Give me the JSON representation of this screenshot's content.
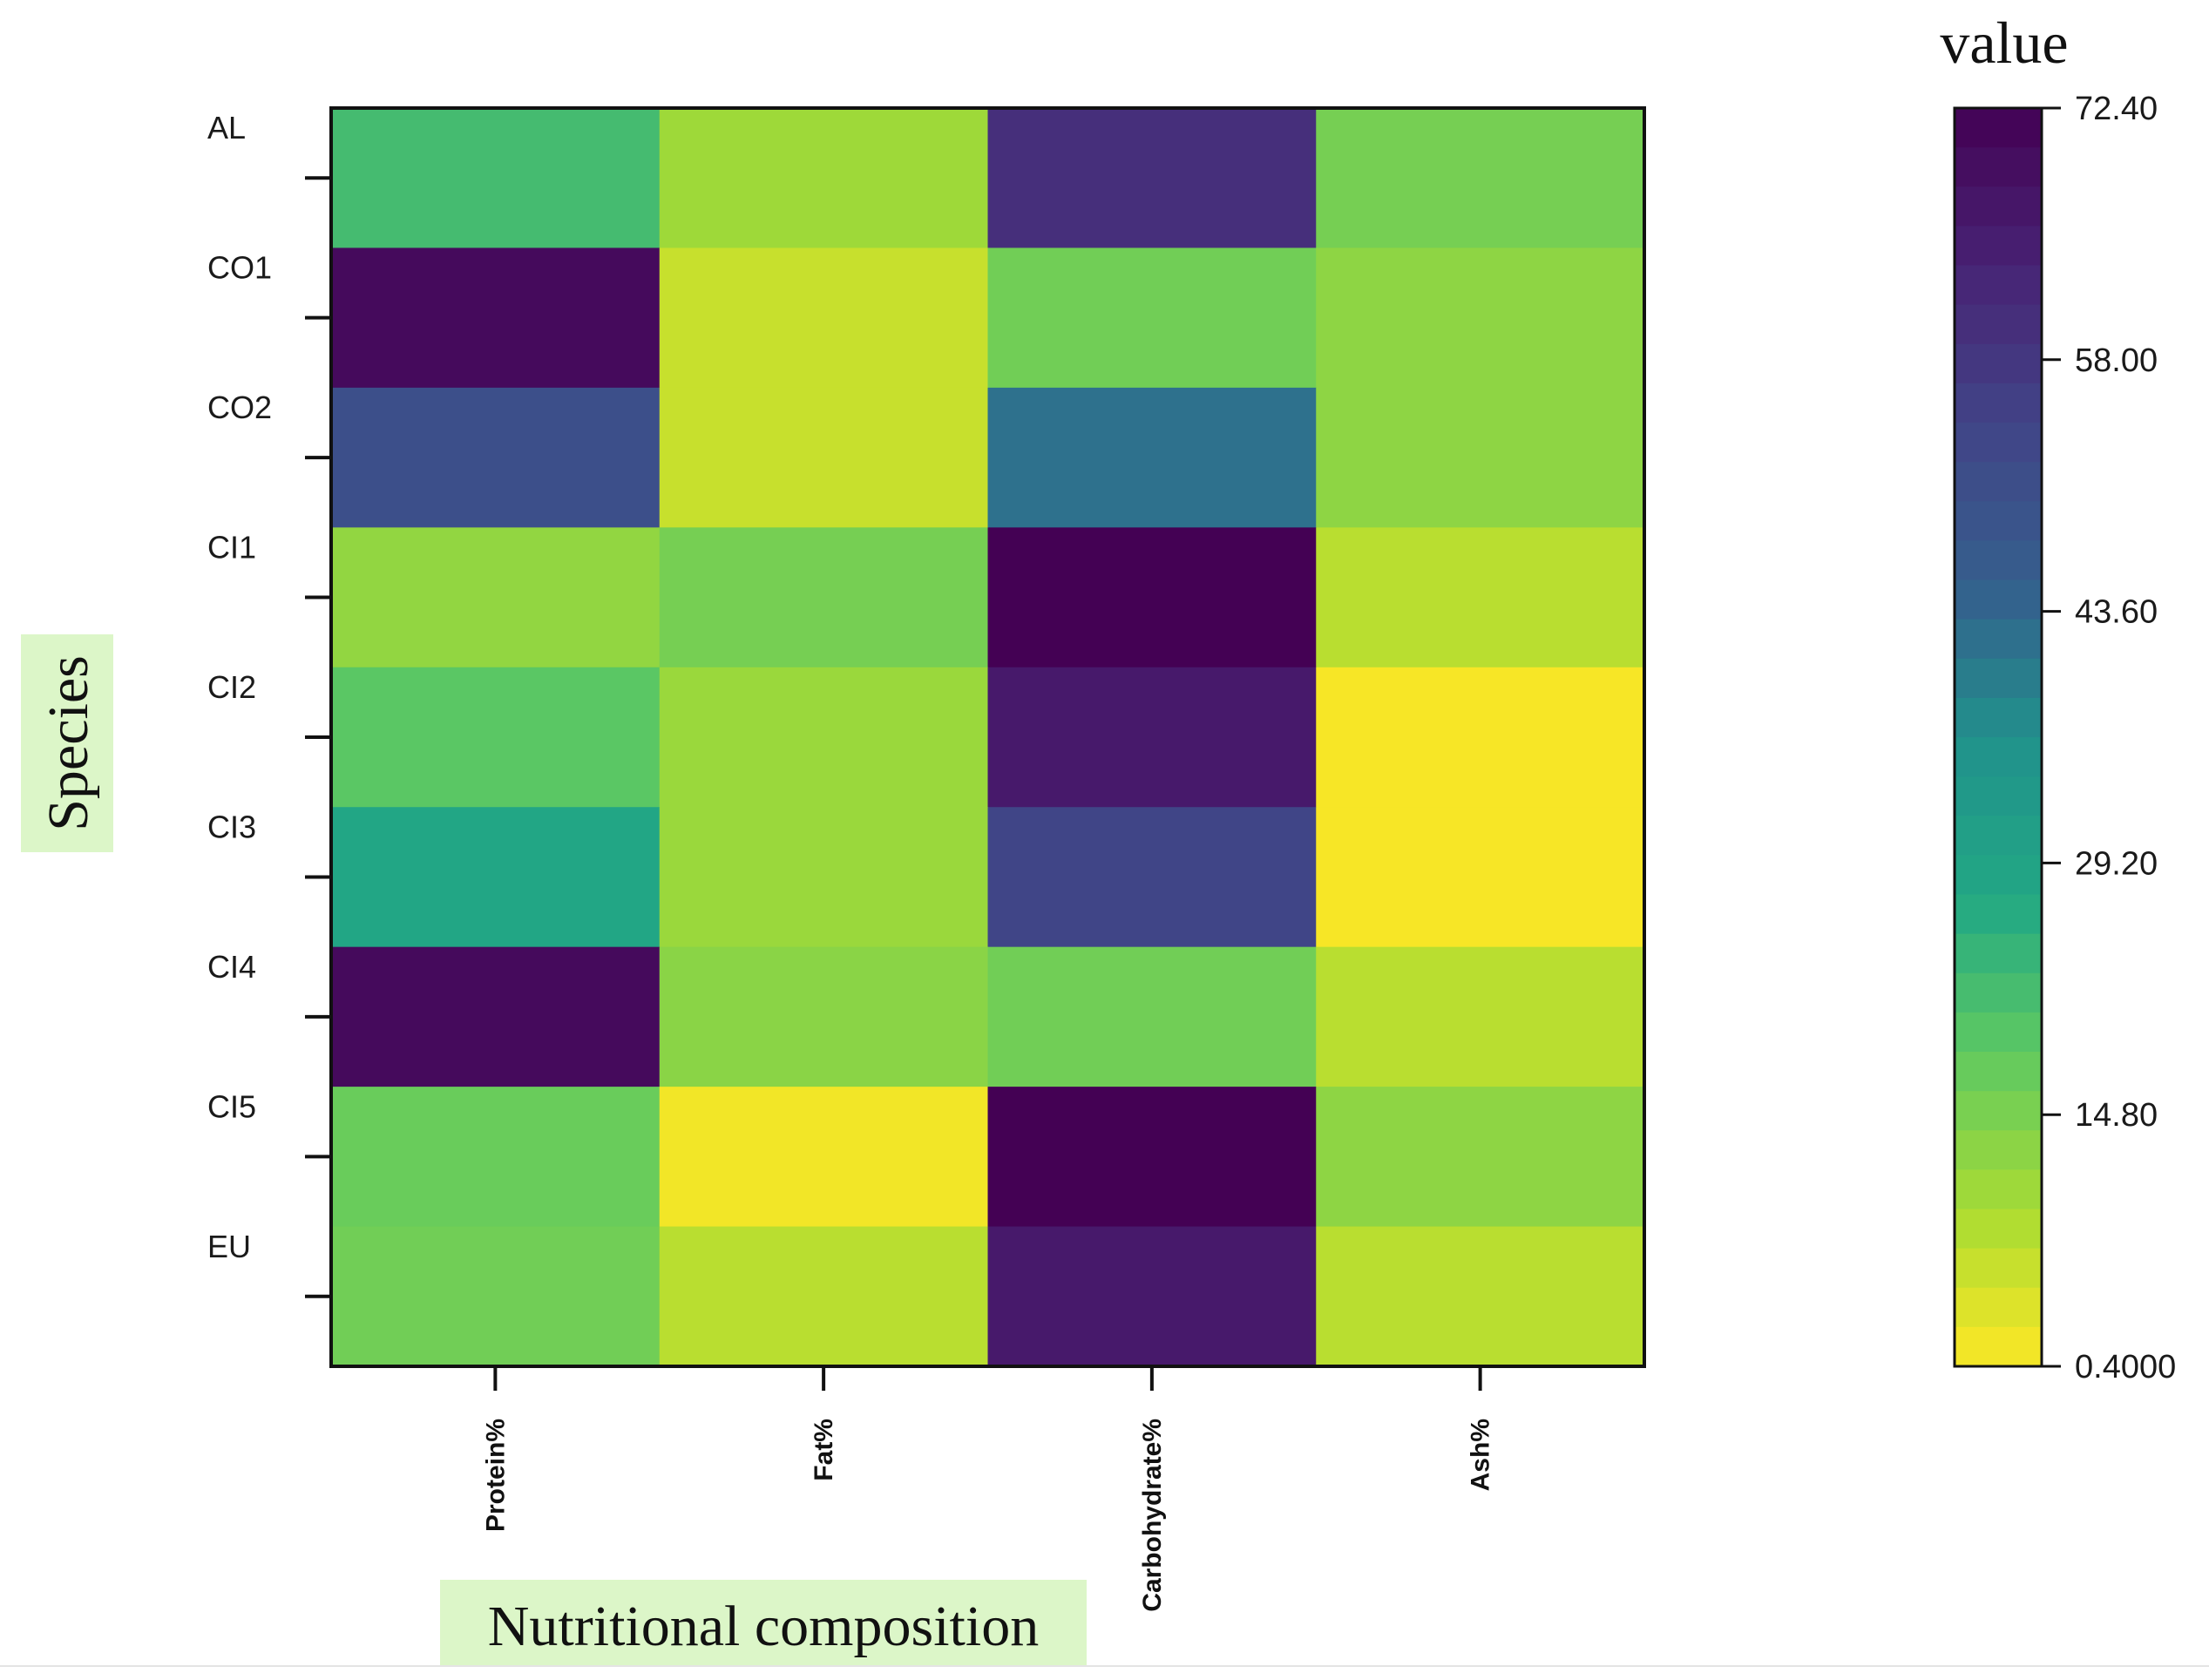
{
  "chart_data": {
    "type": "heatmap",
    "title": "",
    "xlabel": "Nutritional composition",
    "ylabel": "Species",
    "x_categories": [
      "Protein%",
      "Fat%",
      "Carbohydrate%",
      "Ash%"
    ],
    "y_categories": [
      "AL",
      "CO1",
      "CO2",
      "CI1",
      "CI2",
      "CI3",
      "CI4",
      "CI5",
      "EU"
    ],
    "values": [
      [
        22.0,
        10.5,
        60.0,
        15.5
      ],
      [
        70.0,
        6.0,
        16.0,
        12.5
      ],
      [
        50.5,
        6.0,
        42.0,
        12.5
      ],
      [
        12.0,
        15.5,
        72.4,
        7.5
      ],
      [
        19.0,
        11.0,
        66.0,
        1.0
      ],
      [
        28.0,
        11.0,
        54.0,
        1.0
      ],
      [
        70.0,
        13.0,
        16.0,
        7.5
      ],
      [
        17.0,
        1.5,
        72.4,
        12.5
      ],
      [
        16.0,
        7.5,
        66.0,
        7.5
      ]
    ],
    "colorbar": {
      "title": "value",
      "min": 0.4,
      "max": 72.4,
      "ticks": [
        "72.40",
        "58.00",
        "43.60",
        "29.20",
        "14.80",
        "0.4000"
      ],
      "tick_values": [
        72.4,
        58.0,
        43.6,
        29.2,
        14.8,
        0.4
      ],
      "levels": 32,
      "colormap": "viridis-reversed"
    }
  }
}
